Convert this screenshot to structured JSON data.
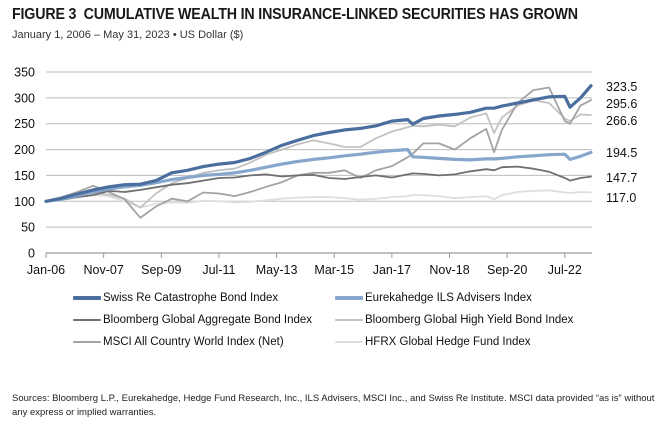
{
  "header": {
    "figure_label": "FIGURE 3",
    "title": "CUMULATIVE WEALTH IN INSURANCE-LINKED SECURITIES HAS GROWN",
    "subtitle": "January 1, 2006 – May 31, 2023 • US Dollar ($)"
  },
  "footer": {
    "sources": "Sources: Bloomberg L.P., Eurekahedge, Hedge Fund Research, Inc., ILS Advisers, MSCI Inc., and Swiss Re Institute. MSCI data provided “as is” without any express or implied warranties."
  },
  "chart_data": {
    "type": "line",
    "title": "CUMULATIVE WEALTH IN INSURANCE-LINKED SECURITIES HAS GROWN",
    "subtitle": "January 1, 2006 – May 31, 2023 • US Dollar ($)",
    "xlabel": "",
    "ylabel": "",
    "ylim": [
      0,
      350
    ],
    "yticks": [
      0,
      50,
      100,
      150,
      200,
      250,
      300,
      350
    ],
    "xticks": [
      "Jan-06",
      "Nov-07",
      "Sep-09",
      "Jul-11",
      "May-13",
      "Mar-15",
      "Jan-17",
      "Nov-18",
      "Sep-20",
      "Jul-22"
    ],
    "xtick_months": [
      0,
      22,
      44,
      66,
      88,
      110,
      132,
      154,
      176,
      198
    ],
    "x_months_total": 208,
    "grid": "horizontal",
    "legend_position": "bottom",
    "x": [
      0,
      6,
      12,
      18,
      24,
      30,
      36,
      42,
      48,
      54,
      60,
      66,
      72,
      78,
      84,
      90,
      96,
      102,
      108,
      114,
      120,
      126,
      132,
      138,
      140,
      144,
      150,
      156,
      162,
      168,
      171,
      174,
      180,
      186,
      192,
      198,
      200,
      204,
      208
    ],
    "x_dates": [
      "Jan-06",
      "Jul-06",
      "Jan-07",
      "Jul-07",
      "Jan-08",
      "Jul-08",
      "Jan-09",
      "Jul-09",
      "Jan-10",
      "Jul-10",
      "Jan-11",
      "Jul-11",
      "Jan-12",
      "Jul-12",
      "Jan-13",
      "Jul-13",
      "Jan-14",
      "Jul-14",
      "Jan-15",
      "Jul-15",
      "Jan-16",
      "Jul-16",
      "Jan-17",
      "Jul-17",
      "Sep-17",
      "Jan-18",
      "Jul-18",
      "Jan-19",
      "Jul-19",
      "Jan-20",
      "Apr-20",
      "Jul-20",
      "Jan-21",
      "Jul-21",
      "Jan-22",
      "Jul-22",
      "Sep-22",
      "Jan-23",
      "May-23"
    ],
    "series": [
      {
        "name": "Swiss Re Catastrophe Bond Index",
        "color": "#4a6f9e",
        "width": 3.2,
        "end_label": "323.5",
        "values": [
          100,
          106,
          114,
          122,
          128,
          132,
          133,
          140,
          155,
          160,
          167,
          172,
          175,
          183,
          195,
          208,
          218,
          227,
          233,
          238,
          241,
          246,
          255,
          258,
          249,
          260,
          265,
          268,
          272,
          280,
          280,
          284,
          290,
          296,
          302,
          303,
          282,
          300,
          323.5
        ]
      },
      {
        "name": "Eurekahedge ILS Advisers Index",
        "color": "#86a6cc",
        "width": 3.2,
        "end_label": "194.5",
        "values": [
          100,
          104,
          111,
          118,
          124,
          128,
          131,
          136,
          142,
          146,
          150,
          152,
          155,
          160,
          166,
          172,
          177,
          181,
          184,
          188,
          191,
          195,
          198,
          200,
          186,
          185,
          183,
          181,
          180,
          182,
          182,
          183,
          186,
          188,
          190,
          191,
          181,
          187,
          194.5
        ]
      },
      {
        "name": "Bloomberg Global Aggregate Bond Index",
        "color": "#707070",
        "width": 1.8,
        "end_label": "147.7",
        "values": [
          100,
          103,
          108,
          112,
          120,
          118,
          122,
          127,
          132,
          135,
          140,
          145,
          146,
          150,
          152,
          148,
          150,
          151,
          145,
          143,
          147,
          150,
          146,
          152,
          154,
          153,
          150,
          152,
          158,
          162,
          160,
          166,
          167,
          163,
          157,
          145,
          140,
          145,
          147.7
        ]
      },
      {
        "name": "Bloomberg Global High Yield Bond Index",
        "color": "#c2c2c2",
        "width": 1.8,
        "end_label": "266.6",
        "values": [
          100,
          105,
          112,
          116,
          113,
          105,
          88,
          115,
          135,
          145,
          155,
          160,
          163,
          175,
          190,
          200,
          210,
          218,
          212,
          205,
          205,
          222,
          235,
          243,
          246,
          245,
          248,
          245,
          262,
          270,
          232,
          262,
          285,
          295,
          290,
          260,
          255,
          268,
          266.6
        ]
      },
      {
        "name": "MSCI All Country World Index (Net)",
        "color": "#a3a3a3",
        "width": 1.8,
        "end_label": "295.6",
        "values": [
          100,
          108,
          118,
          130,
          118,
          104,
          68,
          90,
          105,
          100,
          117,
          115,
          110,
          118,
          128,
          137,
          150,
          155,
          155,
          160,
          145,
          160,
          168,
          185,
          192,
          212,
          212,
          200,
          222,
          240,
          195,
          238,
          290,
          315,
          320,
          255,
          250,
          285,
          295.6
        ]
      },
      {
        "name": "HFRX Global Hedge Fund Index",
        "color": "#dedede",
        "width": 1.8,
        "end_label": "117.0",
        "values": [
          100,
          103,
          108,
          112,
          110,
          100,
          88,
          95,
          98,
          97,
          101,
          100,
          98,
          99,
          102,
          105,
          107,
          108,
          108,
          106,
          103,
          105,
          108,
          110,
          112,
          112,
          110,
          106,
          108,
          110,
          104,
          112,
          118,
          120,
          121,
          117,
          116,
          118,
          117.0
        ]
      }
    ]
  }
}
